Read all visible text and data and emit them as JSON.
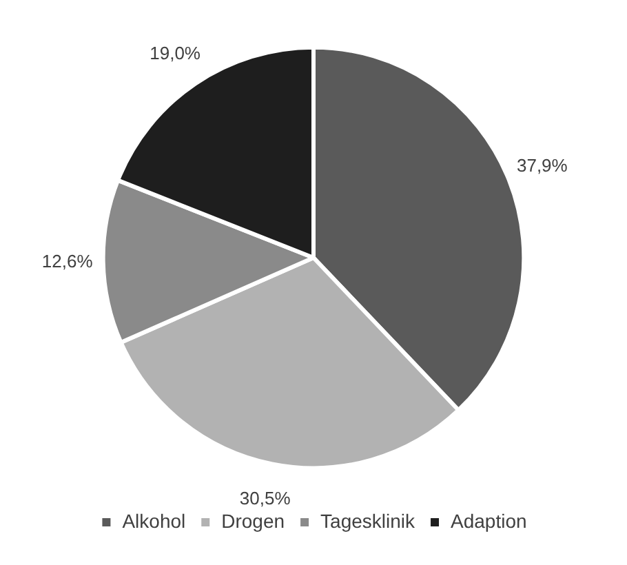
{
  "chart_data": {
    "type": "pie",
    "categories": [
      "Alkohol",
      "Drogen",
      "Tagesklinik",
      "Adaption"
    ],
    "values": [
      37.9,
      30.5,
      12.6,
      19.0
    ],
    "colors": [
      "#5a5a5a",
      "#b2b2b2",
      "#8a8a8a",
      "#1e1e1e"
    ],
    "value_labels": [
      "37,9%",
      "30,5%",
      "12,6%",
      "19,0%"
    ],
    "legend": "bottom"
  }
}
